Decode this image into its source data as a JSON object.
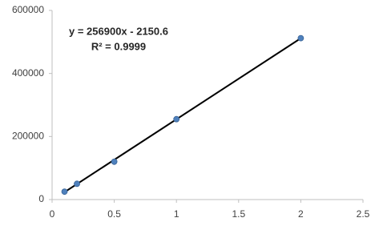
{
  "chart_data": {
    "type": "scatter",
    "x": [
      0.1,
      0.2,
      0.5,
      1,
      2
    ],
    "series": [
      {
        "color": "#4f81bd",
        "values": [
          25000,
          50000,
          120000,
          255000,
          512000
        ]
      }
    ],
    "trendline": {
      "x": [
        0.1,
        2
      ],
      "values": [
        23500,
        511600
      ],
      "color": "#000000"
    },
    "annotations": [
      "y = 256900x - 2150.6",
      "R² = 0.9999"
    ],
    "xlim": [
      0,
      2.5
    ],
    "xticks": [
      0,
      0.5,
      1,
      1.5,
      2,
      2.5
    ],
    "ylim": [
      0,
      600000
    ],
    "yticks": [
      0,
      200000,
      400000,
      600000
    ],
    "grid": false
  }
}
